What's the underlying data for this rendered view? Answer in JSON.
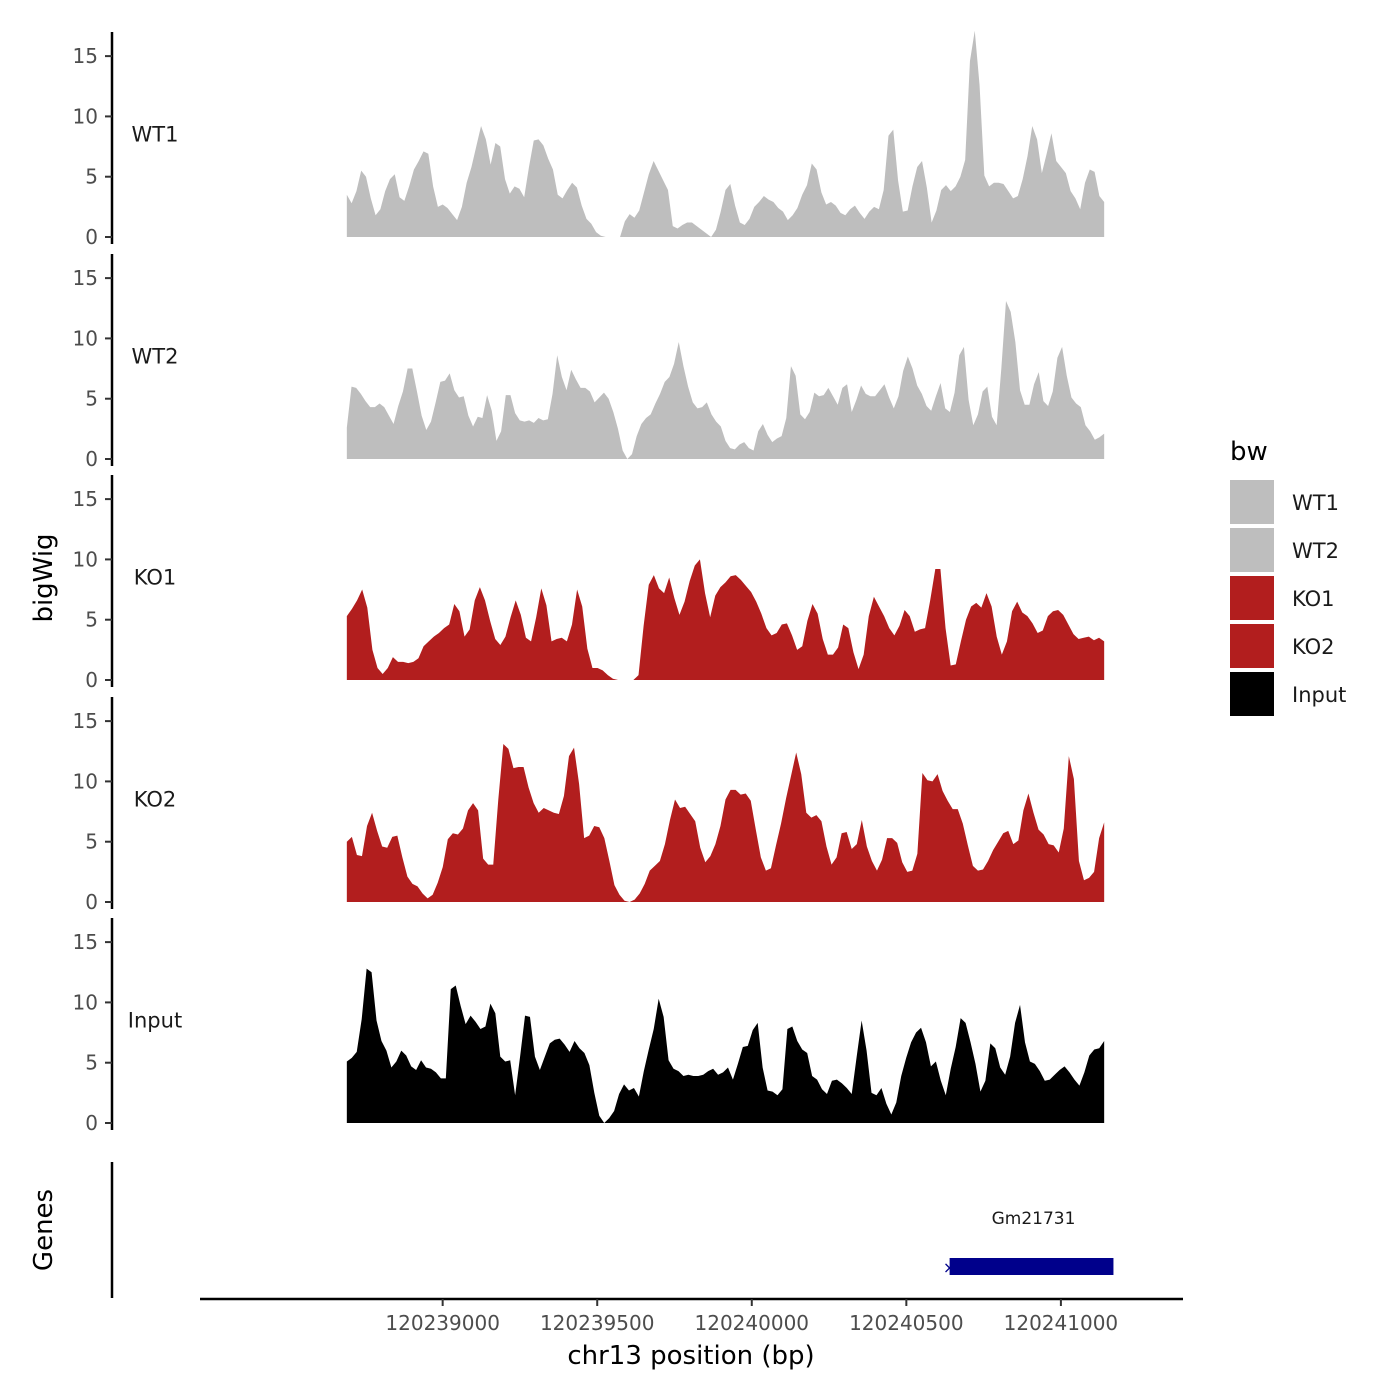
{
  "chart_data": {
    "type": "area",
    "ylabel": "bigWig",
    "genes_label": "Genes",
    "xlabel": "chr13 position (bp)",
    "xlim": [
      120238215,
      120241395
    ],
    "data_range": [
      120238690,
      120241140
    ],
    "ylim": [
      0,
      17
    ],
    "y_ticks": [
      0,
      5,
      10,
      15
    ],
    "x_ticks": [
      120239000,
      120239500,
      120240000,
      120240500,
      120241000
    ],
    "x_tick_labels": [
      "120239000",
      "120239500",
      "120240000",
      "120240500",
      "120241000"
    ],
    "series": [
      {
        "name": "WT1",
        "color": "#bebebe",
        "values": [
          3.5,
          2.8,
          3.8,
          5.5,
          5,
          3.2,
          1.8,
          2.3,
          3.8,
          4.8,
          5.2,
          3.3,
          3,
          4.2,
          5.6,
          6.3,
          7.1,
          6.9,
          4.2,
          2.5,
          2.7,
          2.4,
          1.9,
          1.4,
          2.5,
          4.5,
          5.8,
          7.5,
          9.2,
          8.1,
          6,
          7.8,
          7.5,
          4.8,
          3.6,
          4.2,
          4,
          3.3,
          5.8,
          8,
          8.1,
          7.6,
          6.5,
          5.6,
          3.5,
          3.2,
          3.9,
          4.5,
          4.1,
          2.6,
          1.5,
          1.1,
          0.4,
          0.1,
          0,
          0,
          0,
          0,
          1.3,
          1.9,
          1.6,
          2.2,
          3.7,
          5.2,
          6.3,
          5.5,
          4.7,
          3.9,
          0.9,
          0.7,
          1,
          1.2,
          1.2,
          0.9,
          0.6,
          0.3,
          0,
          0.6,
          2.1,
          3.9,
          4.4,
          2.6,
          1.2,
          1,
          1.5,
          2.5,
          2.9,
          3.4,
          3.1,
          2.9,
          2.4,
          2.1,
          1.4,
          1.8,
          2.4,
          3.5,
          4.3,
          6.1,
          5.6,
          3.7,
          2.7,
          2.9,
          2.6,
          2,
          1.8,
          2.3,
          2.6,
          2,
          1.5,
          2.1,
          2.5,
          2.3,
          3.9,
          8.4,
          8.9,
          4.7,
          2.1,
          2.2,
          4.2,
          5.8,
          6.3,
          4.1,
          1.2,
          2.2,
          3.9,
          4.3,
          3.8,
          4.2,
          5,
          6.4,
          14.6,
          17.1,
          12.6,
          5.1,
          4.2,
          4.5,
          4.5,
          4.4,
          3.8,
          3.2,
          3.4,
          4.8,
          6.7,
          9.2,
          8.1,
          5.3,
          6.9,
          8.6,
          6.3,
          5.8,
          5.3,
          3.8,
          3.2,
          2.3,
          4.5,
          5.6,
          5.4,
          3.4,
          2.9
        ]
      },
      {
        "name": "WT2",
        "color": "#bebebe",
        "values": [
          2.6,
          6,
          5.9,
          5.4,
          4.8,
          4.3,
          4.3,
          4.6,
          4.3,
          3.6,
          2.9,
          4.4,
          5.6,
          7.5,
          7.5,
          5.6,
          3.6,
          2.4,
          3.1,
          4.7,
          6.4,
          6.5,
          7.1,
          5.7,
          5.1,
          5.2,
          3.6,
          2.7,
          3.5,
          3.4,
          5.3,
          4,
          1.5,
          2.3,
          5.3,
          5.3,
          3.8,
          3.2,
          3.1,
          3.2,
          3,
          3.4,
          3.2,
          3.3,
          5.4,
          8.6,
          6.8,
          5.7,
          7.4,
          6.6,
          5.9,
          5.9,
          5.6,
          4.7,
          5.1,
          5.5,
          5,
          3.9,
          2.5,
          0.7,
          0,
          0.4,
          1.9,
          2.9,
          3.4,
          3.7,
          4.6,
          5.4,
          6.4,
          6.8,
          7.9,
          9.7,
          7.7,
          6,
          4.7,
          4.2,
          4.3,
          4.7,
          3.7,
          3.1,
          2.7,
          1.5,
          0.9,
          0.8,
          1.2,
          1.4,
          0.9,
          0.7,
          2.3,
          2.9,
          2,
          1.4,
          1.7,
          1.9,
          3.4,
          7.7,
          6.9,
          3.7,
          3.3,
          3.9,
          5.5,
          5.2,
          5.3,
          5.9,
          5.2,
          4.5,
          5.9,
          6.2,
          3.9,
          4.9,
          6.1,
          5.4,
          5.2,
          5.2,
          5.7,
          6.2,
          5.1,
          4.2,
          5.2,
          7.3,
          8.5,
          7.5,
          6.1,
          5.4,
          4.4,
          4,
          5.2,
          6.3,
          4.2,
          3.9,
          5.5,
          8.6,
          9.3,
          4.9,
          2.8,
          3.7,
          5.6,
          6,
          3.5,
          2.8,
          7.5,
          13.1,
          12.2,
          9.7,
          5.7,
          4.5,
          4.5,
          6.2,
          7.2,
          4.8,
          4.4,
          5.6,
          8.4,
          9.3,
          6.9,
          5.1,
          4.6,
          4.3,
          2.8,
          2.3,
          1.6,
          1.8,
          2.1
        ]
      },
      {
        "name": "KO1",
        "color": "#b21e1e",
        "values": [
          5.3,
          5.9,
          6.6,
          7.5,
          6,
          2.5,
          1,
          0.5,
          1,
          1.9,
          1.5,
          1.5,
          1.4,
          1.5,
          1.8,
          2.8,
          3.2,
          3.6,
          3.9,
          4.3,
          4.6,
          6.3,
          5.7,
          3.6,
          4.2,
          6.6,
          7.7,
          6.6,
          4.9,
          3.4,
          2.9,
          3.6,
          5.2,
          6.6,
          5.4,
          3.5,
          3.2,
          5.2,
          7.6,
          6.2,
          3.2,
          3.4,
          3.5,
          3.2,
          4.6,
          7.5,
          6.1,
          2.6,
          1,
          1,
          0.8,
          0.4,
          0.1,
          0,
          0,
          0,
          0,
          0.4,
          4.5,
          7.9,
          8.7,
          7.6,
          7.2,
          8.5,
          6.8,
          5.4,
          6.5,
          8.2,
          9.5,
          10,
          7.2,
          5.2,
          7,
          7.7,
          8.1,
          8.6,
          8.7,
          8.3,
          7.8,
          7.3,
          6.5,
          5.5,
          4.3,
          3.7,
          3.9,
          4.6,
          4.7,
          3.7,
          2.5,
          2.8,
          4.9,
          6.3,
          5.5,
          3.4,
          2.1,
          2.1,
          2.7,
          4.6,
          4.3,
          2.3,
          0.9,
          2.1,
          5.3,
          6.9,
          6.1,
          5.3,
          4.3,
          3.7,
          4.5,
          5.8,
          5.3,
          4,
          4.2,
          4.3,
          6.6,
          9.2,
          9.2,
          4.3,
          1.2,
          1.3,
          3.2,
          5,
          6.1,
          6.4,
          6,
          7.2,
          6.1,
          3.6,
          2.1,
          3.2,
          5.7,
          6.5,
          5.6,
          5.3,
          4.7,
          3.9,
          4.1,
          5.3,
          5.7,
          5.8,
          5.4,
          4.6,
          3.8,
          3.4,
          3.5,
          3.6,
          3.3,
          3.5,
          3.2
        ]
      },
      {
        "name": "KO2",
        "color": "#b21e1e",
        "values": [
          5,
          5.4,
          3.9,
          3.8,
          6.3,
          7.4,
          5.9,
          4.6,
          4.5,
          5.4,
          5.5,
          3.7,
          2.1,
          1.5,
          1.3,
          0.7,
          0.3,
          0.6,
          1.6,
          2.9,
          5.2,
          5.7,
          5.6,
          6.1,
          7.6,
          8.2,
          7.6,
          3.6,
          3.1,
          3.1,
          8.5,
          13.1,
          12.7,
          11.1,
          11.2,
          11.2,
          9.5,
          8.2,
          7.4,
          7.8,
          7.6,
          7.4,
          7.3,
          8.8,
          12.1,
          12.8,
          9.8,
          5.3,
          5.5,
          6.3,
          6.2,
          5.3,
          3.4,
          1.4,
          0.6,
          0.1,
          0,
          0.2,
          0.7,
          1.5,
          2.6,
          3,
          3.4,
          4.8,
          6.8,
          8.5,
          7.8,
          7.9,
          7.3,
          6.7,
          4.5,
          3.3,
          3.8,
          4.8,
          6.3,
          8.5,
          9.3,
          9.3,
          8.9,
          9,
          8.4,
          6,
          3.7,
          2.6,
          2.8,
          4.7,
          6.5,
          8.6,
          10.5,
          12.4,
          10.6,
          7.4,
          7,
          7.2,
          6.7,
          4.6,
          3.1,
          3.7,
          5.7,
          5.8,
          4.4,
          4.8,
          6.8,
          4.6,
          3.4,
          2.6,
          3.5,
          5.3,
          5.3,
          4.9,
          3.3,
          2.5,
          2.6,
          4,
          10.7,
          10.1,
          10,
          10.6,
          9.2,
          8.4,
          7.7,
          7.7,
          6.5,
          4.7,
          3,
          2.6,
          2.7,
          3.4,
          4.3,
          5,
          5.7,
          5.9,
          4.8,
          5.1,
          7.6,
          9,
          7.4,
          6,
          5.6,
          4.8,
          4.7,
          4.1,
          6.1,
          12.1,
          10.2,
          3.4,
          1.8,
          2,
          2.5,
          5.3,
          6.6
        ]
      },
      {
        "name": "Input",
        "color": "#000000",
        "values": [
          5.1,
          5.4,
          5.9,
          8.6,
          12.8,
          12.5,
          8.5,
          6.8,
          6,
          4.6,
          5.1,
          6,
          5.6,
          4.7,
          4.4,
          5.2,
          4.6,
          4.5,
          4.2,
          3.7,
          3.7,
          11.1,
          11.4,
          9.7,
          8.2,
          8.9,
          8.4,
          7.8,
          8,
          9.9,
          9.1,
          5.5,
          5.1,
          5.2,
          2.3,
          5.5,
          8.9,
          8.8,
          5.5,
          4.4,
          5.5,
          6.6,
          6.9,
          7,
          6.5,
          5.9,
          6.8,
          6.2,
          5.8,
          4.8,
          2.5,
          0.6,
          0,
          0.4,
          1,
          2.4,
          3.2,
          2.7,
          2.9,
          2.2,
          4.3,
          6.1,
          7.8,
          10.3,
          8.8,
          5.2,
          4.5,
          4.3,
          3.9,
          4,
          3.9,
          3.9,
          4,
          4.3,
          4.5,
          4,
          4.2,
          4.6,
          3.6,
          4.9,
          6.3,
          6.4,
          7.7,
          8.3,
          4.6,
          2.7,
          2.6,
          2.3,
          2.8,
          7.8,
          8,
          6.8,
          6.1,
          5.8,
          3.9,
          3.6,
          2.8,
          2.4,
          3.5,
          3.6,
          3.3,
          2.9,
          2.4,
          5.5,
          8.5,
          6,
          2.5,
          2.3,
          2.9,
          1.6,
          0.7,
          1.7,
          3.9,
          5.4,
          6.7,
          7.5,
          7.9,
          6.7,
          4.7,
          5.1,
          3.5,
          2.3,
          4.5,
          6.3,
          8.7,
          8.3,
          6.7,
          4.9,
          2.6,
          3.5,
          6.6,
          6.2,
          4.6,
          4,
          5.5,
          8.3,
          9.8,
          6.7,
          5.1,
          4.9,
          4.3,
          3.5,
          3.6,
          4,
          4.4,
          4.7,
          4.2,
          3.6,
          3.1,
          4.2,
          5.6,
          6.1,
          6.2,
          6.8
        ]
      }
    ],
    "gene": {
      "name": "Gm21731",
      "start": 120240640,
      "end": 120241170,
      "strand_marker": "×",
      "color": "#00008b"
    },
    "legend": {
      "title": "bw",
      "entries": [
        {
          "label": "WT1",
          "color": "#bebebe"
        },
        {
          "label": "WT2",
          "color": "#bebebe"
        },
        {
          "label": "KO1",
          "color": "#b21e1e"
        },
        {
          "label": "KO2",
          "color": "#b21e1e"
        },
        {
          "label": "Input",
          "color": "#000000"
        }
      ]
    }
  }
}
